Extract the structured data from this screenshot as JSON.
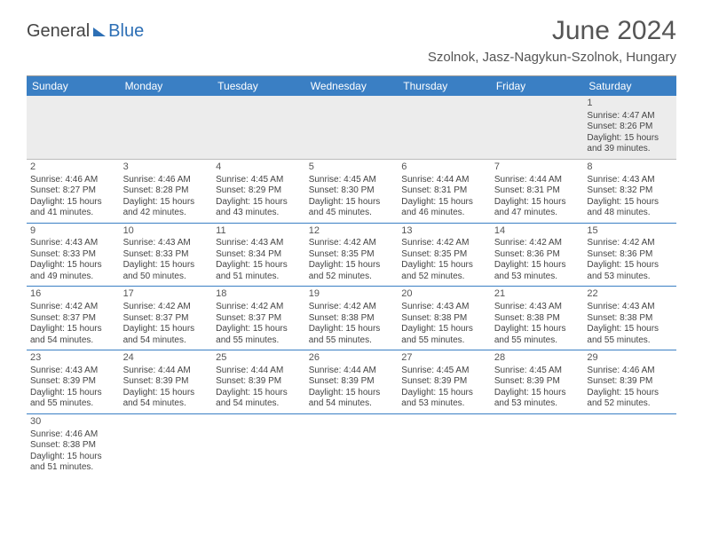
{
  "logo": {
    "part1": "General",
    "part2": "Blue"
  },
  "title": "June 2024",
  "location": "Szolnok, Jasz-Nagykun-Szolnok, Hungary",
  "colors": {
    "header_bg": "#3a7fc4",
    "header_text": "#ffffff",
    "text": "#444444",
    "line": "#3a7fc4"
  },
  "weekdays": [
    "Sunday",
    "Monday",
    "Tuesday",
    "Wednesday",
    "Thursday",
    "Friday",
    "Saturday"
  ],
  "cell_fontsize": 10,
  "daynum_fontsize": 11,
  "weeks": [
    [
      null,
      null,
      null,
      null,
      null,
      null,
      {
        "n": "1",
        "sr": "Sunrise: 4:47 AM",
        "ss": "Sunset: 8:26 PM",
        "d1": "Daylight: 15 hours",
        "d2": "and 39 minutes."
      }
    ],
    [
      {
        "n": "2",
        "sr": "Sunrise: 4:46 AM",
        "ss": "Sunset: 8:27 PM",
        "d1": "Daylight: 15 hours",
        "d2": "and 41 minutes."
      },
      {
        "n": "3",
        "sr": "Sunrise: 4:46 AM",
        "ss": "Sunset: 8:28 PM",
        "d1": "Daylight: 15 hours",
        "d2": "and 42 minutes."
      },
      {
        "n": "4",
        "sr": "Sunrise: 4:45 AM",
        "ss": "Sunset: 8:29 PM",
        "d1": "Daylight: 15 hours",
        "d2": "and 43 minutes."
      },
      {
        "n": "5",
        "sr": "Sunrise: 4:45 AM",
        "ss": "Sunset: 8:30 PM",
        "d1": "Daylight: 15 hours",
        "d2": "and 45 minutes."
      },
      {
        "n": "6",
        "sr": "Sunrise: 4:44 AM",
        "ss": "Sunset: 8:31 PM",
        "d1": "Daylight: 15 hours",
        "d2": "and 46 minutes."
      },
      {
        "n": "7",
        "sr": "Sunrise: 4:44 AM",
        "ss": "Sunset: 8:31 PM",
        "d1": "Daylight: 15 hours",
        "d2": "and 47 minutes."
      },
      {
        "n": "8",
        "sr": "Sunrise: 4:43 AM",
        "ss": "Sunset: 8:32 PM",
        "d1": "Daylight: 15 hours",
        "d2": "and 48 minutes."
      }
    ],
    [
      {
        "n": "9",
        "sr": "Sunrise: 4:43 AM",
        "ss": "Sunset: 8:33 PM",
        "d1": "Daylight: 15 hours",
        "d2": "and 49 minutes."
      },
      {
        "n": "10",
        "sr": "Sunrise: 4:43 AM",
        "ss": "Sunset: 8:33 PM",
        "d1": "Daylight: 15 hours",
        "d2": "and 50 minutes."
      },
      {
        "n": "11",
        "sr": "Sunrise: 4:43 AM",
        "ss": "Sunset: 8:34 PM",
        "d1": "Daylight: 15 hours",
        "d2": "and 51 minutes."
      },
      {
        "n": "12",
        "sr": "Sunrise: 4:42 AM",
        "ss": "Sunset: 8:35 PM",
        "d1": "Daylight: 15 hours",
        "d2": "and 52 minutes."
      },
      {
        "n": "13",
        "sr": "Sunrise: 4:42 AM",
        "ss": "Sunset: 8:35 PM",
        "d1": "Daylight: 15 hours",
        "d2": "and 52 minutes."
      },
      {
        "n": "14",
        "sr": "Sunrise: 4:42 AM",
        "ss": "Sunset: 8:36 PM",
        "d1": "Daylight: 15 hours",
        "d2": "and 53 minutes."
      },
      {
        "n": "15",
        "sr": "Sunrise: 4:42 AM",
        "ss": "Sunset: 8:36 PM",
        "d1": "Daylight: 15 hours",
        "d2": "and 53 minutes."
      }
    ],
    [
      {
        "n": "16",
        "sr": "Sunrise: 4:42 AM",
        "ss": "Sunset: 8:37 PM",
        "d1": "Daylight: 15 hours",
        "d2": "and 54 minutes."
      },
      {
        "n": "17",
        "sr": "Sunrise: 4:42 AM",
        "ss": "Sunset: 8:37 PM",
        "d1": "Daylight: 15 hours",
        "d2": "and 54 minutes."
      },
      {
        "n": "18",
        "sr": "Sunrise: 4:42 AM",
        "ss": "Sunset: 8:37 PM",
        "d1": "Daylight: 15 hours",
        "d2": "and 55 minutes."
      },
      {
        "n": "19",
        "sr": "Sunrise: 4:42 AM",
        "ss": "Sunset: 8:38 PM",
        "d1": "Daylight: 15 hours",
        "d2": "and 55 minutes."
      },
      {
        "n": "20",
        "sr": "Sunrise: 4:43 AM",
        "ss": "Sunset: 8:38 PM",
        "d1": "Daylight: 15 hours",
        "d2": "and 55 minutes."
      },
      {
        "n": "21",
        "sr": "Sunrise: 4:43 AM",
        "ss": "Sunset: 8:38 PM",
        "d1": "Daylight: 15 hours",
        "d2": "and 55 minutes."
      },
      {
        "n": "22",
        "sr": "Sunrise: 4:43 AM",
        "ss": "Sunset: 8:38 PM",
        "d1": "Daylight: 15 hours",
        "d2": "and 55 minutes."
      }
    ],
    [
      {
        "n": "23",
        "sr": "Sunrise: 4:43 AM",
        "ss": "Sunset: 8:39 PM",
        "d1": "Daylight: 15 hours",
        "d2": "and 55 minutes."
      },
      {
        "n": "24",
        "sr": "Sunrise: 4:44 AM",
        "ss": "Sunset: 8:39 PM",
        "d1": "Daylight: 15 hours",
        "d2": "and 54 minutes."
      },
      {
        "n": "25",
        "sr": "Sunrise: 4:44 AM",
        "ss": "Sunset: 8:39 PM",
        "d1": "Daylight: 15 hours",
        "d2": "and 54 minutes."
      },
      {
        "n": "26",
        "sr": "Sunrise: 4:44 AM",
        "ss": "Sunset: 8:39 PM",
        "d1": "Daylight: 15 hours",
        "d2": "and 54 minutes."
      },
      {
        "n": "27",
        "sr": "Sunrise: 4:45 AM",
        "ss": "Sunset: 8:39 PM",
        "d1": "Daylight: 15 hours",
        "d2": "and 53 minutes."
      },
      {
        "n": "28",
        "sr": "Sunrise: 4:45 AM",
        "ss": "Sunset: 8:39 PM",
        "d1": "Daylight: 15 hours",
        "d2": "and 53 minutes."
      },
      {
        "n": "29",
        "sr": "Sunrise: 4:46 AM",
        "ss": "Sunset: 8:39 PM",
        "d1": "Daylight: 15 hours",
        "d2": "and 52 minutes."
      }
    ],
    [
      {
        "n": "30",
        "sr": "Sunrise: 4:46 AM",
        "ss": "Sunset: 8:38 PM",
        "d1": "Daylight: 15 hours",
        "d2": "and 51 minutes."
      },
      null,
      null,
      null,
      null,
      null,
      null
    ]
  ]
}
